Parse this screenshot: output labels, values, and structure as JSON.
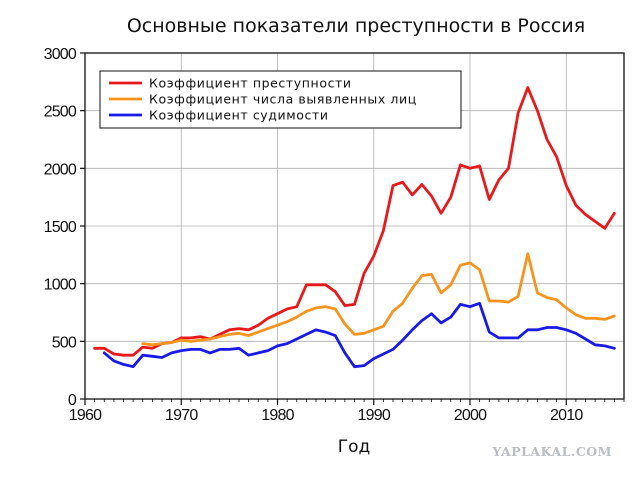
{
  "chart_data": {
    "type": "line",
    "title": "Основные показатели преступности в Россия",
    "xlabel": "Год",
    "ylabel": "",
    "xlim": [
      1960,
      2016
    ],
    "ylim": [
      0,
      3000
    ],
    "xticks": [
      1960,
      1970,
      1980,
      1990,
      2000,
      2010
    ],
    "yticks": [
      0,
      500,
      1000,
      1500,
      2000,
      2500,
      3000
    ],
    "grid": true,
    "legend_position": "top-left",
    "series": [
      {
        "name": "Коэффициент преступности",
        "color": "#e8191b",
        "x": [
          1961,
          1962,
          1963,
          1964,
          1965,
          1966,
          1967,
          1968,
          1969,
          1970,
          1971,
          1972,
          1973,
          1974,
          1975,
          1976,
          1977,
          1978,
          1979,
          1980,
          1981,
          1982,
          1983,
          1984,
          1985,
          1986,
          1987,
          1988,
          1989,
          1990,
          1991,
          1992,
          1993,
          1994,
          1995,
          1996,
          1997,
          1998,
          1999,
          2000,
          2001,
          2002,
          2003,
          2004,
          2005,
          2006,
          2007,
          2008,
          2009,
          2010,
          2011,
          2012,
          2013,
          2014,
          2015
        ],
        "values": [
          440,
          440,
          390,
          380,
          380,
          450,
          440,
          480,
          490,
          530,
          530,
          540,
          520,
          560,
          600,
          610,
          600,
          640,
          700,
          740,
          780,
          800,
          990,
          990,
          990,
          930,
          810,
          820,
          1090,
          1240,
          1460,
          1850,
          1880,
          1770,
          1860,
          1760,
          1610,
          1750,
          2030,
          2000,
          2020,
          1730,
          1900,
          2000,
          2480,
          2700,
          2500,
          2250,
          2100,
          1850,
          1680,
          1600,
          1540,
          1480,
          1610
        ]
      },
      {
        "name": "Коэффициент числа выявленных лиц",
        "color": "#f7941d",
        "x": [
          1966,
          1967,
          1968,
          1969,
          1970,
          1971,
          1972,
          1973,
          1974,
          1975,
          1976,
          1977,
          1978,
          1979,
          1980,
          1981,
          1982,
          1983,
          1984,
          1985,
          1986,
          1987,
          1988,
          1989,
          1990,
          1991,
          1992,
          1993,
          1994,
          1995,
          1996,
          1997,
          1998,
          1999,
          2000,
          2001,
          2002,
          2003,
          2004,
          2005,
          2006,
          2007,
          2008,
          2009,
          2010,
          2011,
          2012,
          2013,
          2014,
          2015
        ],
        "values": [
          480,
          470,
          480,
          490,
          510,
          500,
          510,
          520,
          540,
          560,
          570,
          550,
          580,
          610,
          640,
          670,
          710,
          760,
          790,
          800,
          780,
          650,
          560,
          570,
          600,
          630,
          760,
          830,
          960,
          1070,
          1080,
          920,
          990,
          1160,
          1180,
          1120,
          850,
          850,
          840,
          890,
          1260,
          920,
          880,
          860,
          790,
          730,
          700,
          700,
          690,
          720
        ]
      },
      {
        "name": "Коэффициент судимости",
        "color": "#1a1ae6",
        "x": [
          1962,
          1963,
          1964,
          1965,
          1966,
          1967,
          1968,
          1969,
          1970,
          1971,
          1972,
          1973,
          1974,
          1975,
          1976,
          1977,
          1978,
          1979,
          1980,
          1981,
          1982,
          1983,
          1984,
          1985,
          1986,
          1987,
          1988,
          1989,
          1990,
          1991,
          1992,
          1993,
          1994,
          1995,
          1996,
          1997,
          1998,
          1999,
          2000,
          2001,
          2002,
          2003,
          2004,
          2005,
          2006,
          2007,
          2008,
          2009,
          2010,
          2011,
          2012,
          2013,
          2014,
          2015
        ],
        "values": [
          400,
          330,
          300,
          280,
          380,
          370,
          360,
          400,
          420,
          430,
          430,
          400,
          430,
          430,
          440,
          380,
          400,
          420,
          460,
          480,
          520,
          560,
          600,
          580,
          550,
          400,
          280,
          290,
          350,
          390,
          430,
          510,
          600,
          680,
          740,
          660,
          710,
          820,
          800,
          830,
          580,
          530,
          530,
          530,
          600,
          600,
          620,
          620,
          600,
          570,
          520,
          470,
          460,
          440
        ]
      }
    ]
  },
  "watermark": "YAPLAKAL.COM"
}
